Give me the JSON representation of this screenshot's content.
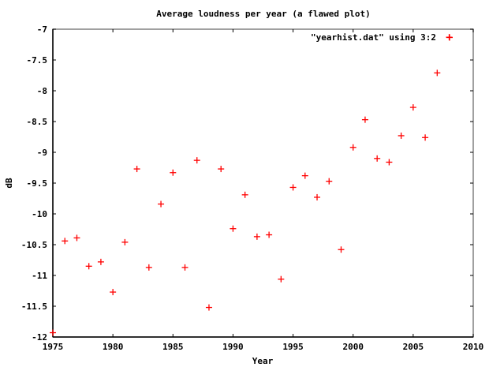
{
  "chart_data": {
    "type": "scatter",
    "title": "Average loudness per year (a flawed plot)",
    "xlabel": "Year",
    "ylabel": "dB",
    "xlim": [
      1975,
      2010
    ],
    "ylim": [
      -12,
      -7
    ],
    "grid": false,
    "legend_position": "top-right",
    "x_ticks": [
      1975,
      1980,
      1985,
      1990,
      1995,
      2000,
      2005,
      2010
    ],
    "x_tick_labels": [
      "1975",
      "1980",
      "1985",
      "1990",
      "1995",
      "2000",
      "2005",
      "2010"
    ],
    "y_ticks": [
      -7,
      -7.5,
      -8,
      -8.5,
      -9,
      -9.5,
      -10,
      -10.5,
      -11,
      -11.5,
      -12
    ],
    "y_tick_labels": [
      "-7",
      "-7.5",
      "-8",
      "-8.5",
      "-9",
      "-9.5",
      "-10",
      "-10.5",
      "-11",
      "-11.5",
      "-12"
    ],
    "series": [
      {
        "name": "\"yearhist.dat\" using 3:2",
        "marker": "plus",
        "color": "#ff0000",
        "x": [
          1975,
          1976,
          1977,
          1978,
          1979,
          1980,
          1981,
          1982,
          1983,
          1984,
          1985,
          1986,
          1987,
          1988,
          1989,
          1990,
          1991,
          1992,
          1993,
          1994,
          1995,
          1996,
          1997,
          1998,
          1999,
          2000,
          2001,
          2002,
          2003,
          2004,
          2005,
          2006,
          2007,
          2008
        ],
        "y": [
          -11.93,
          -10.44,
          -10.39,
          -10.85,
          -10.78,
          -11.27,
          -10.46,
          -9.27,
          -10.87,
          -9.84,
          -9.33,
          -10.87,
          -9.13,
          -11.52,
          -9.27,
          -10.24,
          -9.69,
          -10.37,
          -10.34,
          -11.06,
          -9.57,
          -9.38,
          -9.73,
          -9.47,
          -10.58,
          -8.92,
          -8.47,
          -9.1,
          -9.16,
          -8.73,
          -8.27,
          -8.76,
          -7.71,
          -7.13
        ]
      }
    ]
  },
  "colors": {
    "series": "#ff0000",
    "axis": "#000000",
    "frame": "#808080",
    "background": "#ffffff"
  }
}
